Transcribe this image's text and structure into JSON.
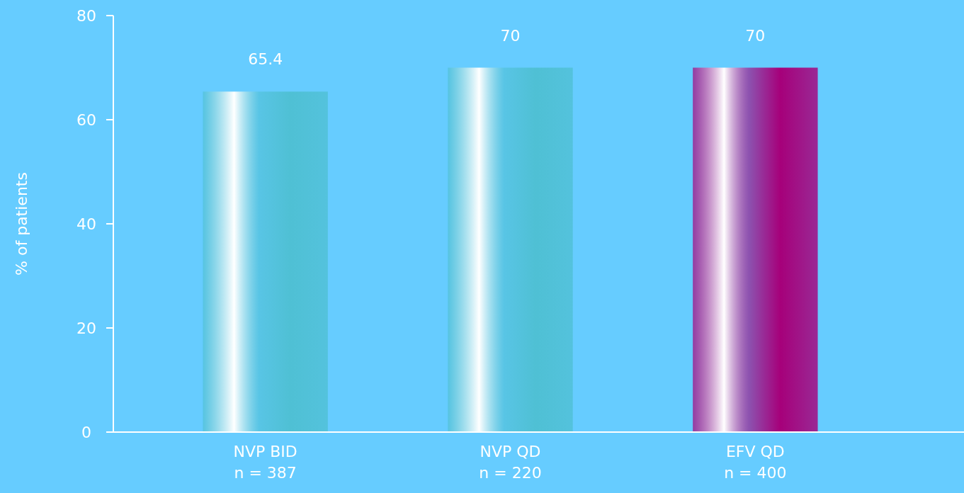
{
  "chart_data": {
    "type": "bar",
    "categories": [
      "NVP BID\nn = 387",
      "NVP QD\nn = 220",
      "EFV QD\nn = 400"
    ],
    "values": [
      65.4,
      70,
      70
    ],
    "colors": [
      "#4fc0d4",
      "#4fc0d4",
      "#a6007a"
    ],
    "ylabel": "% of patients",
    "ylim": [
      0,
      80
    ],
    "yticks": [
      0,
      20,
      40,
      60,
      80
    ],
    "data_labels": true
  }
}
